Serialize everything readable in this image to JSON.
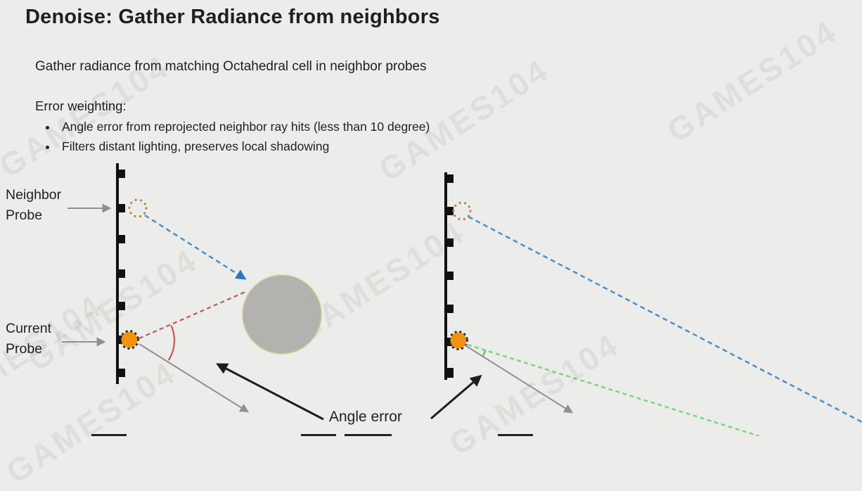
{
  "slide": {
    "title": "Denoise: Gather Radiance from neighbors",
    "subtitle": "Gather radiance from matching Octahedral cell in neighbor probes",
    "error_weighting": {
      "heading": "Error weighting:",
      "bullets": [
        "Angle error from reprojected neighbor ray hits (less than 10 degree)",
        "Filters distant lighting, preserves local shadowing"
      ]
    }
  },
  "diagram": {
    "labels": {
      "neighbor_probe": "Neighbor Probe",
      "current_probe": "Current Probe",
      "angle_error": "Angle error"
    }
  },
  "watermark": {
    "text": "GAMES104"
  },
  "colors": {
    "background": "#ECECEA",
    "text": "#1F1F1F",
    "blue_ray": "#4E8FC7",
    "red_ray": "#C4564E",
    "green_ray": "#7ED47E",
    "probe_orange": "#F2930D",
    "neighbor_ring_dots": "#B9853F",
    "gray_arrow": "#909090",
    "black_arrow": "#1D1D1D",
    "occluder_gray": "#B2B2AF",
    "occluder_outline": "#D8CA92"
  }
}
